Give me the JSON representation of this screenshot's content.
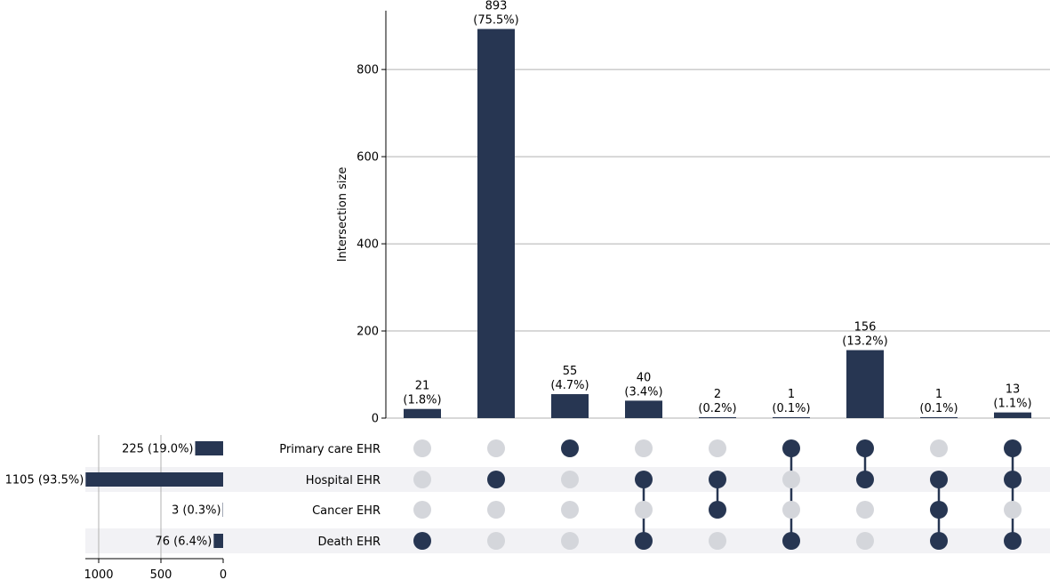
{
  "chart_data": {
    "type": "bar",
    "title": "",
    "ylabel": "Intersection size",
    "ylim": [
      0,
      935
    ],
    "yticks": [
      0,
      200,
      400,
      600,
      800
    ],
    "grid": true,
    "bar_color": "#273652",
    "inactive_dot_color": "#d4d6db",
    "stripe_color": "#f2f2f5",
    "sets": [
      "Primary care EHR",
      "Hospital EHR",
      "Cancer EHR",
      "Death EHR"
    ],
    "set_sizes": [
      225,
      1105,
      3,
      76
    ],
    "set_size_labels": [
      "225 (19.0%)",
      "1105 (93.5%)",
      "3 (0.3%)",
      "76 (6.4%)"
    ],
    "set_size_ticks": [
      1000,
      500,
      0
    ],
    "set_size_xlim": [
      0,
      1140
    ],
    "intersections": [
      {
        "members": [
          3
        ],
        "value": 21,
        "count_label": "21",
        "pct_label": "(1.8%)"
      },
      {
        "members": [
          1
        ],
        "value": 893,
        "count_label": "893",
        "pct_label": "(75.5%)"
      },
      {
        "members": [
          0
        ],
        "value": 55,
        "count_label": "55",
        "pct_label": "(4.7%)"
      },
      {
        "members": [
          1,
          3
        ],
        "value": 40,
        "count_label": "40",
        "pct_label": "(3.4%)"
      },
      {
        "members": [
          1,
          2
        ],
        "value": 2,
        "count_label": "2",
        "pct_label": "(0.2%)"
      },
      {
        "members": [
          0,
          3
        ],
        "value": 1,
        "count_label": "1",
        "pct_label": "(0.1%)"
      },
      {
        "members": [
          0,
          1
        ],
        "value": 156,
        "count_label": "156",
        "pct_label": "(13.2%)"
      },
      {
        "members": [
          1,
          2,
          3
        ],
        "value": 1,
        "count_label": "1",
        "pct_label": "(0.1%)"
      },
      {
        "members": [
          0,
          1,
          3
        ],
        "value": 13,
        "count_label": "13",
        "pct_label": "(1.1%)"
      }
    ]
  }
}
